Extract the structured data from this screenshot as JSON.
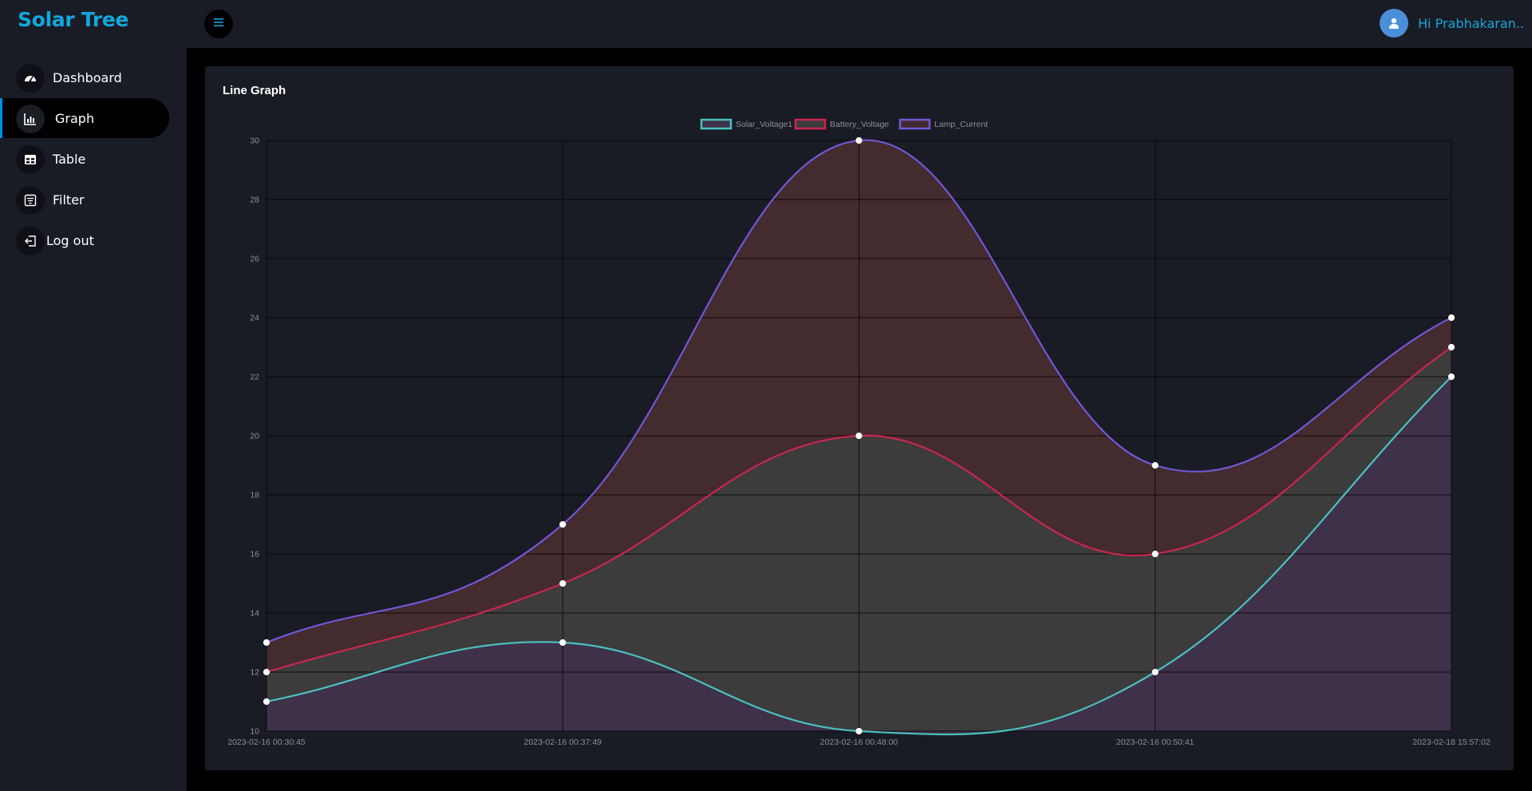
{
  "app": {
    "title": "Solar Tree"
  },
  "sidebar": {
    "items": [
      {
        "label": "Dashboard",
        "icon": "dashboard-gauge-icon",
        "active": false
      },
      {
        "label": "Graph",
        "icon": "bar-chart-icon",
        "active": true
      },
      {
        "label": "Table",
        "icon": "table-icon",
        "active": false
      },
      {
        "label": "Filter",
        "icon": "filter-icon",
        "active": false
      },
      {
        "label": "Log out",
        "icon": "logout-icon",
        "active": false
      }
    ]
  },
  "header": {
    "menu_icon": "menu-icon",
    "user_greeting": "Hi Prabhakaran..",
    "avatar_icon": "user-avatar-icon"
  },
  "card": {
    "title": "Line Graph"
  },
  "colors": {
    "brand": "#14a6dd",
    "solar": "#4bc0c0",
    "battery": "#c9264f",
    "lamp": "#7157d6",
    "fill_solar": "#3f3149",
    "fill_battery": "#3b3c3b",
    "fill_lamp": "#432b2e"
  },
  "chart_data": {
    "type": "area",
    "title": "",
    "x": [
      "2023-02-16 00:30:45",
      "2023-02-16 00:37:49",
      "2023-02-16 00:48:00",
      "2023-02-16 00:50:41",
      "2023-02-18 15:57:02"
    ],
    "series": [
      {
        "name": "Solar_Voltage1",
        "values": [
          11,
          13,
          10,
          12,
          22
        ]
      },
      {
        "name": "Battery_Voltage",
        "values": [
          12,
          15,
          20,
          16,
          23
        ]
      },
      {
        "name": "Lamp_Current",
        "values": [
          13,
          17,
          30,
          19,
          24
        ]
      }
    ],
    "ylim": [
      10,
      30
    ],
    "yticks": [
      10,
      12,
      14,
      16,
      18,
      20,
      22,
      24,
      26,
      28,
      30
    ],
    "grid": true,
    "legend": "top-center",
    "xlabel": "",
    "ylabel": ""
  }
}
